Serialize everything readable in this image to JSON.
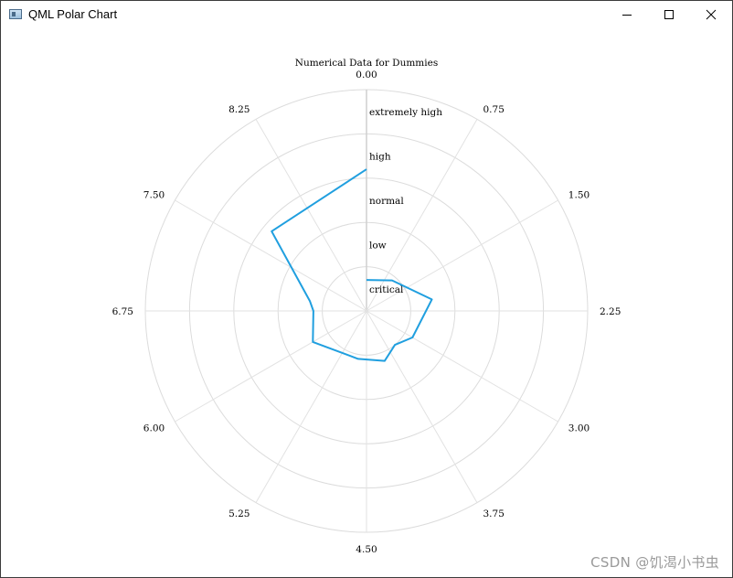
{
  "window": {
    "title": "QML Polar Chart",
    "icon": "app-window-icon",
    "controls": {
      "minimize_icon": "minimize-icon",
      "maximize_icon": "maximize-icon",
      "close_icon": "close-icon"
    }
  },
  "chart_data": {
    "type": "line",
    "projection": "polar",
    "title": "Numerical Data for Dummies",
    "angular_axis": {
      "min": 0,
      "max": 9,
      "tick_labels": [
        "0.00",
        "0.75",
        "1.50",
        "2.25",
        "3.00",
        "3.75",
        "4.50",
        "5.25",
        "6.00",
        "6.75",
        "7.50",
        "8.25"
      ]
    },
    "radial_axis": {
      "min": 0,
      "max": 5,
      "categories": [
        {
          "label": "critical",
          "end": 1
        },
        {
          "label": "low",
          "end": 2
        },
        {
          "label": "normal",
          "end": 3
        },
        {
          "label": "high",
          "end": 4
        },
        {
          "label": "extremely high",
          "end": 5
        }
      ]
    },
    "grid": true,
    "series": [
      {
        "color": "#209fdf",
        "points": [
          {
            "x": 0,
            "y": 0.7
          },
          {
            "x": 1,
            "y": 0.9
          },
          {
            "x": 2,
            "y": 1.5
          },
          {
            "x": 3,
            "y": 1.2
          },
          {
            "x": 3.5,
            "y": 1.0
          },
          {
            "x": 4,
            "y": 1.2
          },
          {
            "x": 4.75,
            "y": 1.1
          },
          {
            "x": 6,
            "y": 1.4
          },
          {
            "x": 6.75,
            "y": 1.2
          },
          {
            "x": 7,
            "y": 1.3
          },
          {
            "x": 7.75,
            "y": 2.8
          },
          {
            "x": 9,
            "y": 3.2
          }
        ]
      }
    ]
  },
  "watermark": "CSDN @饥渴小书虫"
}
